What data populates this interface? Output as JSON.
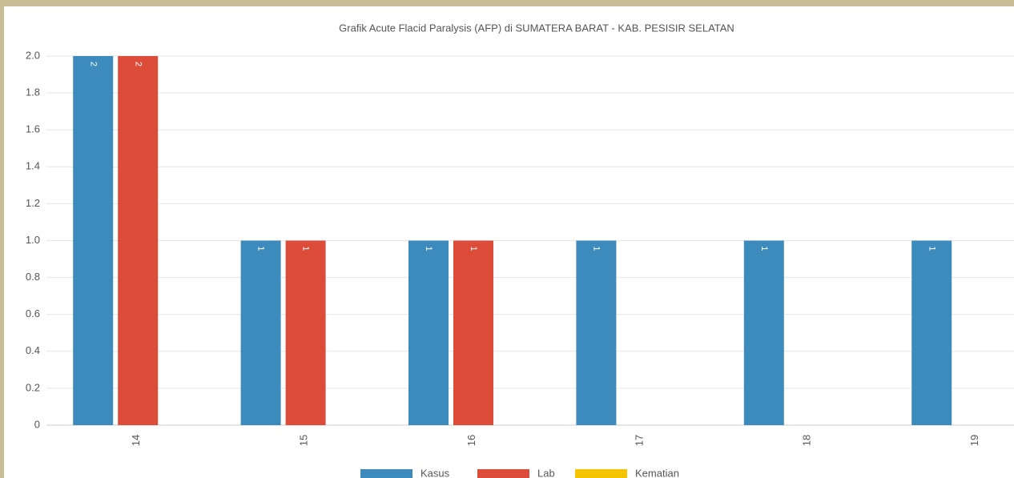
{
  "chart_data": {
    "type": "bar",
    "title": "Grafik Acute Flacid Paralysis (AFP) di SUMATERA BARAT - KAB. PESISIR SELATAN",
    "categories": [
      "14",
      "15",
      "16",
      "17",
      "18",
      "19"
    ],
    "series": [
      {
        "name": "Kasus",
        "color": "#3d8bbd",
        "values": [
          2,
          1,
          1,
          1,
          1,
          1
        ]
      },
      {
        "name": "Lab",
        "color": "#dd4b39",
        "values": [
          2,
          1,
          1,
          0,
          0,
          0
        ]
      },
      {
        "name": "Kematian",
        "color": "#f5c400",
        "values": [
          0,
          0,
          0,
          0,
          0,
          0
        ]
      }
    ],
    "ylim": [
      0,
      2
    ],
    "yticks": [
      0,
      0.2,
      0.4,
      0.6,
      0.8,
      {
        "value": 1,
        "label": "1.0"
      },
      1.2,
      1.4,
      1.6,
      1.8,
      {
        "value": 2,
        "label": "2.0"
      }
    ],
    "grid": true
  }
}
